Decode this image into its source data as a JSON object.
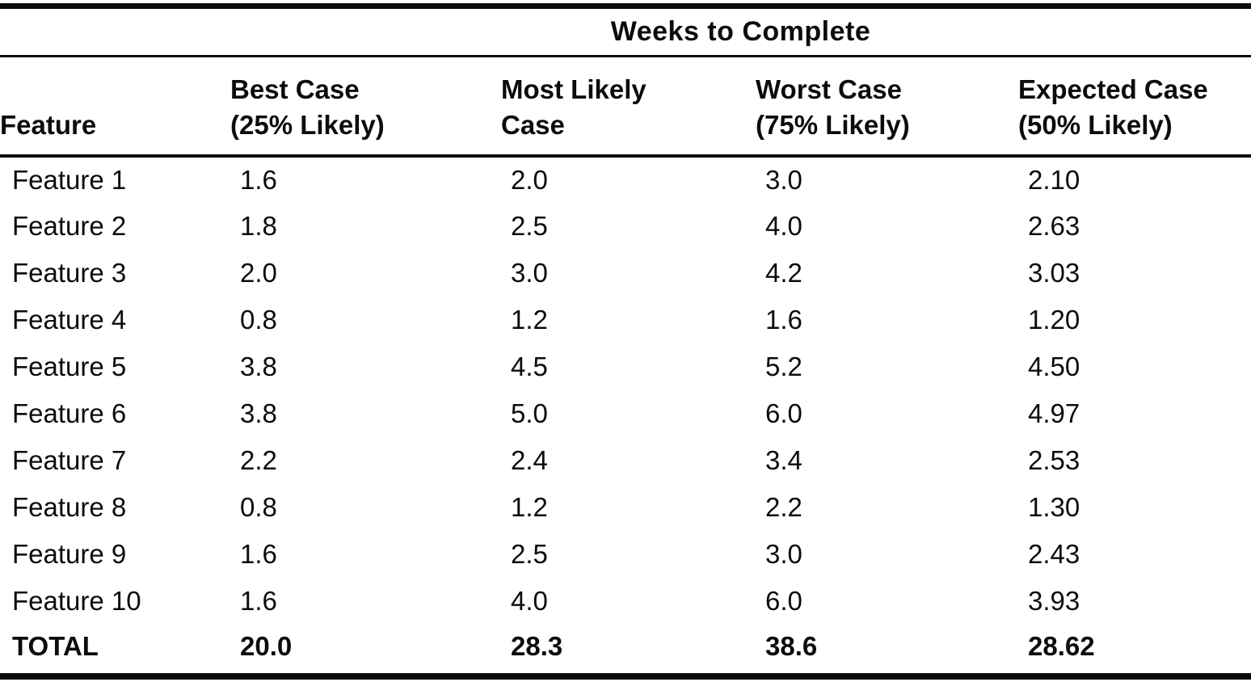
{
  "table": {
    "spanning_header": "Weeks to Complete",
    "columns": [
      {
        "line1": "",
        "line2": "Feature"
      },
      {
        "line1": "Best Case",
        "line2": "(25% Likely)"
      },
      {
        "line1": "Most Likely",
        "line2": "Case"
      },
      {
        "line1": "Worst Case",
        "line2": "(75% Likely)"
      },
      {
        "line1": "Expected Case",
        "line2": "(50% Likely)"
      }
    ],
    "rows": [
      {
        "feature": "Feature 1",
        "best": "1.6",
        "likely": "2.0",
        "worst": "3.0",
        "expected": "2.10"
      },
      {
        "feature": "Feature 2",
        "best": "1.8",
        "likely": "2.5",
        "worst": "4.0",
        "expected": "2.63"
      },
      {
        "feature": "Feature 3",
        "best": "2.0",
        "likely": "3.0",
        "worst": "4.2",
        "expected": "3.03"
      },
      {
        "feature": "Feature 4",
        "best": "0.8",
        "likely": "1.2",
        "worst": "1.6",
        "expected": "1.20"
      },
      {
        "feature": "Feature 5",
        "best": "3.8",
        "likely": "4.5",
        "worst": "5.2",
        "expected": "4.50"
      },
      {
        "feature": "Feature 6",
        "best": "3.8",
        "likely": "5.0",
        "worst": "6.0",
        "expected": "4.97"
      },
      {
        "feature": "Feature 7",
        "best": "2.2",
        "likely": "2.4",
        "worst": "3.4",
        "expected": "2.53"
      },
      {
        "feature": "Feature 8",
        "best": "0.8",
        "likely": "1.2",
        "worst": "2.2",
        "expected": "1.30"
      },
      {
        "feature": "Feature 9",
        "best": "1.6",
        "likely": "2.5",
        "worst": "3.0",
        "expected": "2.43"
      },
      {
        "feature": "Feature 10",
        "best": "1.6",
        "likely": "4.0",
        "worst": "6.0",
        "expected": "3.93"
      }
    ],
    "total": {
      "label": "TOTAL",
      "best": "20.0",
      "likely": "28.3",
      "worst": "38.6",
      "expected": "28.62"
    },
    "ink_color": "#0a0a0a",
    "paper_color": "#ffffff"
  }
}
